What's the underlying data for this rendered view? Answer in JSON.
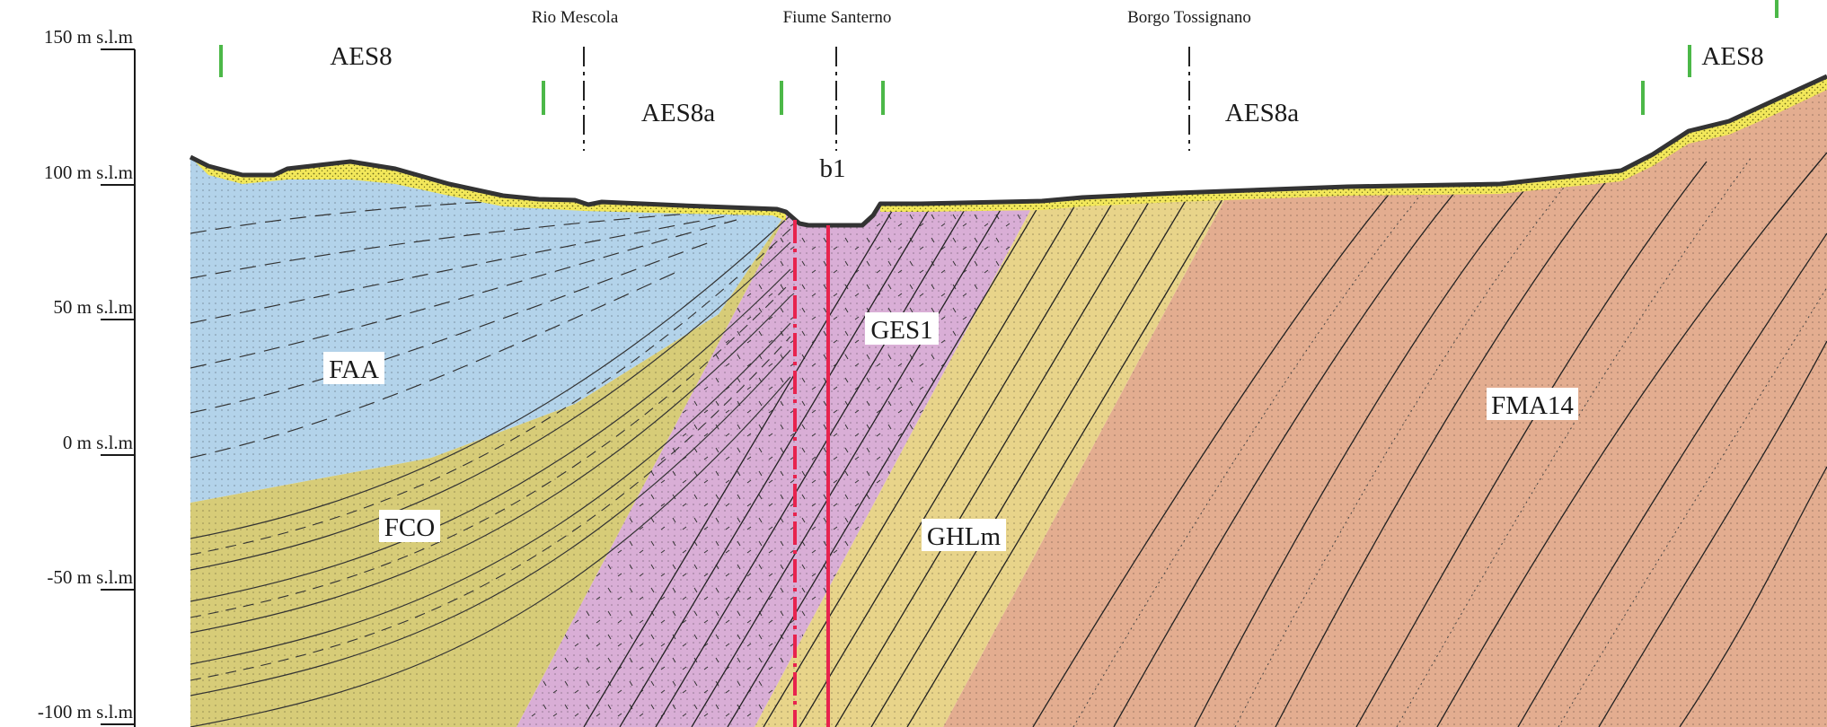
{
  "elevation_axis": {
    "ticks": [
      "150 m s.l.m",
      "100 m s.l.m",
      "50 m s.l.m",
      "0 m s.l.m",
      "-50 m s.l.m",
      "-100 m s.l.m"
    ]
  },
  "places": {
    "rio_mescola": "Rio Mescola",
    "fiume_santerno": "Fiume Santerno",
    "borgo_tossignano": "Borgo Tossignano"
  },
  "surface_units": {
    "aes8_left": "AES8",
    "aes8a_left": "AES8a",
    "aes8a_right": "AES8a",
    "aes8_right": "AES8",
    "b1": "b1"
  },
  "formations": {
    "faa": "FAA",
    "fco": "FCO",
    "ges1": "GES1",
    "ghlm": "GHLm",
    "fma14": "FMA14"
  },
  "colors": {
    "faa": "#b3d3ea",
    "fco": "#d7cc78",
    "ges1": "#d9aed6",
    "ghlm": "#e8d48a",
    "fma14": "#e3ad90",
    "surface_deposit": "#f3e85a",
    "fault": "#e8234e",
    "boundary_marker": "#4cb848"
  }
}
